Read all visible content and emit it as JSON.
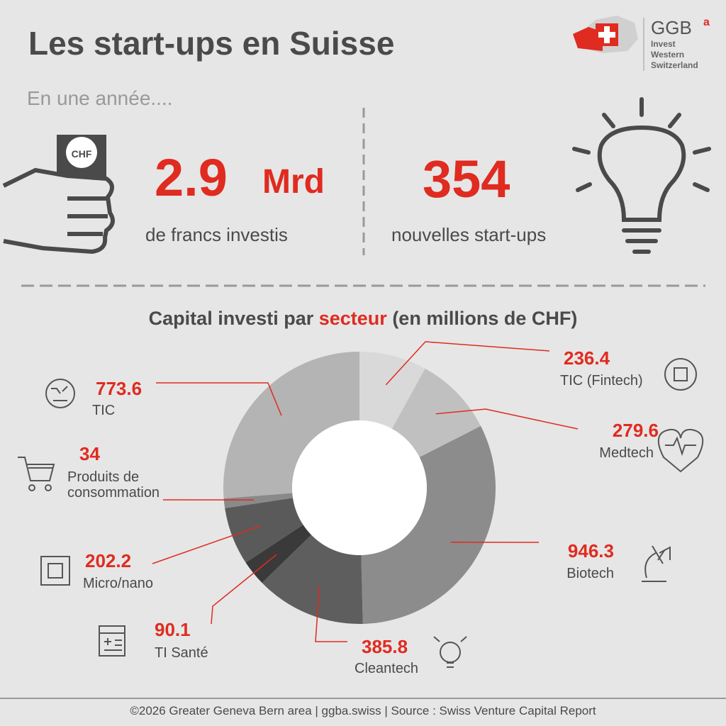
{
  "header": {
    "title": "Les start-ups en Suisse",
    "logo": {
      "name": "GGB",
      "sup": "a",
      "lines": [
        "Invest",
        "Western",
        "Switzerland"
      ]
    }
  },
  "stats": {
    "intro": "En une année....",
    "bill": "CHF",
    "invest_value": "2.9",
    "invest_unit": "Mrd",
    "invest_label": "de francs investis",
    "startups_value": "354",
    "startups_label": "nouvelles start-ups"
  },
  "chart_data": {
    "type": "donut",
    "title": {
      "before": "Capital investi par ",
      "highlight": "secteur",
      "after": " (en millions de CHF)"
    },
    "categories": [
      "TIC (Fintech)",
      "Medtech",
      "Biotech",
      "Cleantech",
      "TI Santé",
      "Micro/nano",
      "Produits de consommation",
      "TIC"
    ],
    "values": [
      236.4,
      279.6,
      946.3,
      385.8,
      90.1,
      202.2,
      34,
      773.6
    ],
    "colors": [
      "#d9d9d9",
      "#c0c0c0",
      "#8c8c8c",
      "#5e5e5e",
      "#3a3a3a",
      "#5a5a5a",
      "#8a8a8a",
      "#b4b4b4"
    ]
  },
  "footer": "©2026 Greater Geneva Bern area | ggba.swiss | Source : Swiss Venture Capital Report"
}
